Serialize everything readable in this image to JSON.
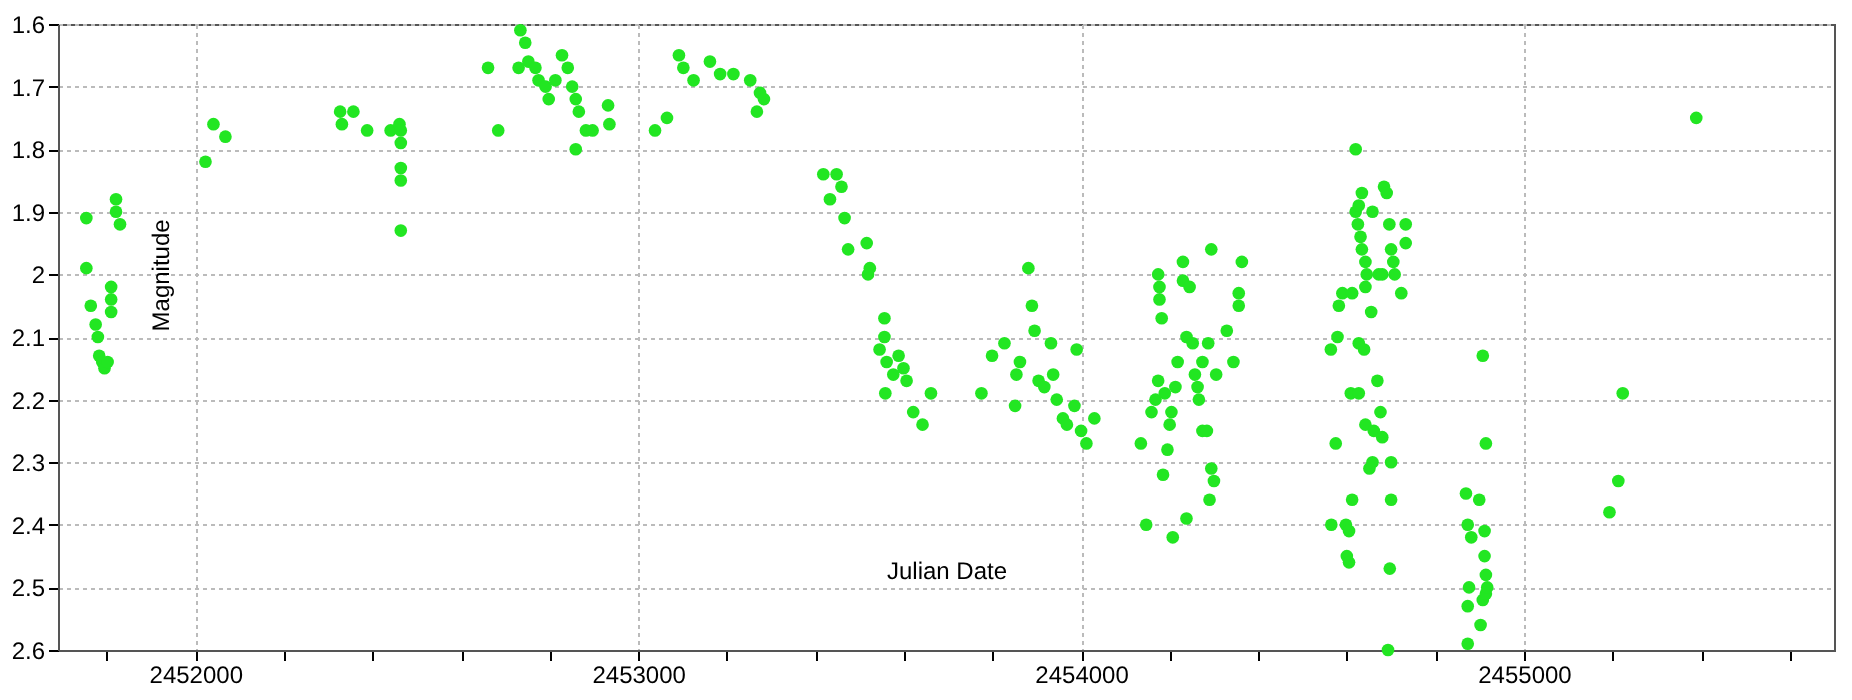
{
  "chart_data": {
    "type": "scatter",
    "xlabel": "Julian Date",
    "ylabel": "Magnitude",
    "marker": "circle",
    "grid": true,
    "xlim": [
      2451690,
      2455700
    ],
    "ylim": [
      2.6,
      1.6
    ],
    "xticks": [
      {
        "value": 2451800,
        "label": null
      },
      2452000,
      {
        "value": 2452200,
        "label": null
      },
      {
        "value": 2452400,
        "label": null
      },
      {
        "value": 2452600,
        "label": null
      },
      {
        "value": 2452800,
        "label": null
      },
      2453000,
      {
        "value": 2453200,
        "label": null
      },
      {
        "value": 2453400,
        "label": null
      },
      {
        "value": 2453600,
        "label": null
      },
      {
        "value": 2453800,
        "label": null
      },
      2454000,
      {
        "value": 2454200,
        "label": null
      },
      {
        "value": 2454400,
        "label": null
      },
      {
        "value": 2454600,
        "label": null
      },
      {
        "value": 2454800,
        "label": null
      },
      2455000,
      {
        "value": 2455200,
        "label": null
      },
      {
        "value": 2455400,
        "label": null
      },
      {
        "value": 2455600,
        "label": null
      }
    ],
    "yticks": [
      1.6,
      1.7,
      1.8,
      1.9,
      2,
      2.1,
      2.2,
      2.3,
      2.4,
      2.5,
      2.6
    ],
    "series": [
      {
        "color": "#22e622",
        "x": [
          2451754,
          2451754,
          2451764,
          2451775,
          2451780,
          2451783,
          2451790,
          2451795,
          2451802,
          2451810,
          2451810,
          2451810,
          2451821,
          2451821,
          2451830,
          2452023,
          2452041,
          2452068,
          2452327,
          2452331,
          2452357,
          2452388,
          2452441,
          2452461,
          2452464,
          2452464,
          2452464,
          2452464,
          2452464,
          2452661,
          2452684,
          2452734,
          2452730,
          2452745,
          2452752,
          2452768,
          2452775,
          2452791,
          2452798,
          2452813,
          2452828,
          2452841,
          2452851,
          2452859,
          2452866,
          2452859,
          2452882,
          2452897,
          2452932,
          2452935,
          2453038,
          2453065,
          2453092,
          2453102,
          2453125,
          2453162,
          2453185,
          2453215,
          2453253,
          2453275,
          2453284,
          2453268,
          2453418,
          2453448,
          2453433,
          2453459,
          2453466,
          2453474,
          2453516,
          2453523,
          2453519,
          2453556,
          2453556,
          2453545,
          2453561,
          2453576,
          2453588,
          2453599,
          2453606,
          2453558,
          2453621,
          2453642,
          2453661,
          2453775,
          2453799,
          2453827,
          2453851,
          2453854,
          2453862,
          2453881,
          2453889,
          2453895,
          2453904,
          2453917,
          2453932,
          2453937,
          2453945,
          2453959,
          2453968,
          2453985,
          2453990,
          2454000,
          2454012,
          2454030,
          2454135,
          2454147,
          2454159,
          2454168,
          2454174,
          2454174,
          2454177,
          2454177,
          2454182,
          2454185,
          2454189,
          2454195,
          2454200,
          2454204,
          2454207,
          2454213,
          2454218,
          2454230,
          2454230,
          2454238,
          2454238,
          2454245,
          2454252,
          2454257,
          2454263,
          2454266,
          2454274,
          2454274,
          2454284,
          2454287,
          2454290,
          2454294,
          2454294,
          2454300,
          2454305,
          2454329,
          2454344,
          2454356,
          2454356,
          2454363,
          2454564,
          2454575,
          2454579,
          2454582,
          2454590,
          2454565,
          2454598,
          2454605,
          2454600,
          2454605,
          2454612,
          2454609,
          2454627,
          2454612,
          2454620,
          2454620,
          2454625,
          2454627,
          2454634,
          2454631,
          2454634,
          2454642,
          2454645,
          2454642,
          2454627,
          2454639,
          2454642,
          2454651,
          2454655,
          2454658,
          2454661,
          2454658,
          2454669,
          2454672,
          2454676,
          2454680,
          2454680,
          2454684,
          2454690,
          2454693,
          2454696,
          2454697,
          2454700,
          2454700,
          2454700,
          2454705,
          2454708,
          2454723,
          2454733,
          2454733,
          2454869,
          2454873,
          2454873,
          2454876,
          2454873,
          2454881,
          2454899,
          2454902,
          2454907,
          2454907,
          2454911,
          2454911,
          2454914,
          2454914,
          2454914,
          2454917,
          2455193,
          2455213,
          2455223,
          2455389
        ],
        "values": [
          1.91,
          1.99,
          2.05,
          2.08,
          2.1,
          2.13,
          2.14,
          2.15,
          2.14,
          2.02,
          2.04,
          2.06,
          1.88,
          1.9,
          1.92,
          1.82,
          1.76,
          1.78,
          1.74,
          1.76,
          1.74,
          1.77,
          1.77,
          1.76,
          1.77,
          1.79,
          1.83,
          1.85,
          1.93,
          1.67,
          1.77,
          1.61,
          1.67,
          1.63,
          1.66,
          1.67,
          1.69,
          1.7,
          1.72,
          1.69,
          1.65,
          1.67,
          1.7,
          1.72,
          1.74,
          1.8,
          1.77,
          1.77,
          1.73,
          1.76,
          1.77,
          1.75,
          1.65,
          1.67,
          1.69,
          1.66,
          1.68,
          1.68,
          1.69,
          1.71,
          1.72,
          1.74,
          1.84,
          1.84,
          1.88,
          1.86,
          1.91,
          1.96,
          1.95,
          1.99,
          2.0,
          2.07,
          2.1,
          2.12,
          2.14,
          2.16,
          2.13,
          2.15,
          2.17,
          2.19,
          2.22,
          2.24,
          2.19,
          2.19,
          2.13,
          2.11,
          2.21,
          2.16,
          2.14,
          1.99,
          2.05,
          2.09,
          2.17,
          2.18,
          2.11,
          2.16,
          2.2,
          2.23,
          2.24,
          2.21,
          2.12,
          2.25,
          2.27,
          2.23,
          2.27,
          2.4,
          2.22,
          2.2,
          2.17,
          2.0,
          2.02,
          2.04,
          2.07,
          2.32,
          2.19,
          2.28,
          2.24,
          2.22,
          2.42,
          2.18,
          2.14,
          1.98,
          2.01,
          2.39,
          2.1,
          2.02,
          2.11,
          2.16,
          2.18,
          2.2,
          2.14,
          2.25,
          2.25,
          2.11,
          2.36,
          1.96,
          2.31,
          2.33,
          2.16,
          2.09,
          2.14,
          2.03,
          2.05,
          1.98,
          2.12,
          2.27,
          2.1,
          2.05,
          2.03,
          2.4,
          2.4,
          2.41,
          2.45,
          2.46,
          2.36,
          2.19,
          2.19,
          2.03,
          1.8,
          1.9,
          1.92,
          1.89,
          1.87,
          1.94,
          1.96,
          2.02,
          2.0,
          1.98,
          2.11,
          2.12,
          2.24,
          2.31,
          2.06,
          1.9,
          2.25,
          2.3,
          2.17,
          2.0,
          2.22,
          2.26,
          2.0,
          1.86,
          1.87,
          2.6,
          1.92,
          2.47,
          1.96,
          2.36,
          2.3,
          1.98,
          2.0,
          2.03,
          1.92,
          1.95,
          2.35,
          2.4,
          2.53,
          2.5,
          2.59,
          2.42,
          2.36,
          2.56,
          2.13,
          2.52,
          2.45,
          2.41,
          2.27,
          2.48,
          2.51,
          2.5,
          2.38,
          2.33,
          2.19,
          1.75
        ]
      }
    ]
  }
}
